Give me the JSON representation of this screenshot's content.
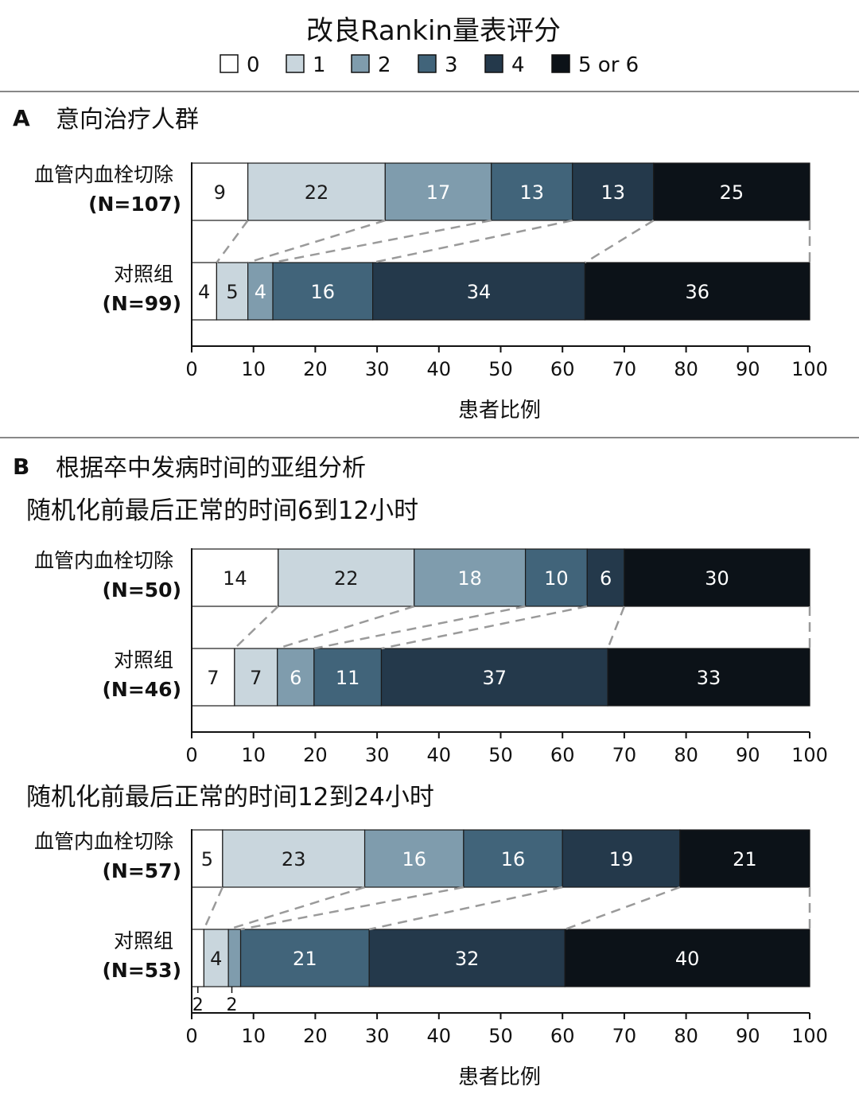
{
  "chart_data": {
    "type": "bar",
    "orientation": "horizontal",
    "stacked": true,
    "title": "改良Rankin量表评分",
    "legend": {
      "placement": "top",
      "entries": [
        {
          "label": "0",
          "color": "#ffffff"
        },
        {
          "label": "1",
          "color": "#c9d6dd"
        },
        {
          "label": "2",
          "color": "#7f9cad"
        },
        {
          "label": "3",
          "color": "#41647a"
        },
        {
          "label": "4",
          "color": "#24394b"
        },
        {
          "label": "5 or 6",
          "color": "#0c1218"
        }
      ]
    },
    "xlabel": "患者比例",
    "xlim": [
      0,
      100
    ],
    "xticks": [
      0,
      10,
      20,
      30,
      40,
      50,
      60,
      70,
      80,
      90,
      100
    ],
    "panels": [
      {
        "letter": "A",
        "title": "意向治疗人群",
        "groups": [
          {
            "subtitle": "",
            "show_xlabel": true,
            "rows": [
              {
                "label": "血管内血栓切除",
                "n": "(N=107)",
                "values": [
                  9,
                  22,
                  17,
                  13,
                  13,
                  25
                ]
              },
              {
                "label": "对照组",
                "n": "(N=99)",
                "values": [
                  4,
                  5,
                  4,
                  16,
                  34,
                  36
                ]
              }
            ]
          }
        ]
      },
      {
        "letter": "B",
        "title": "根据卒中发病时间的亚组分析",
        "groups": [
          {
            "subtitle": "随机化前最后正常的时间6到12小时",
            "show_xlabel": false,
            "rows": [
              {
                "label": "血管内血栓切除",
                "n": "(N=50)",
                "values": [
                  14,
                  22,
                  18,
                  10,
                  6,
                  30
                ]
              },
              {
                "label": "对照组",
                "n": "(N=46)",
                "values": [
                  7,
                  7,
                  6,
                  11,
                  37,
                  33
                ]
              }
            ]
          },
          {
            "subtitle": "随机化前最后正常的时间12到24小时",
            "show_xlabel": true,
            "rows": [
              {
                "label": "血管内血栓切除",
                "n": "(N=57)",
                "values": [
                  5,
                  23,
                  16,
                  16,
                  19,
                  21
                ]
              },
              {
                "label": "对照组",
                "n": "(N=53)",
                "values": [
                  2,
                  4,
                  2,
                  21,
                  32,
                  40
                ],
                "outside_labels": [
                  "2",
                  "2"
                ]
              }
            ]
          }
        ]
      }
    ]
  }
}
